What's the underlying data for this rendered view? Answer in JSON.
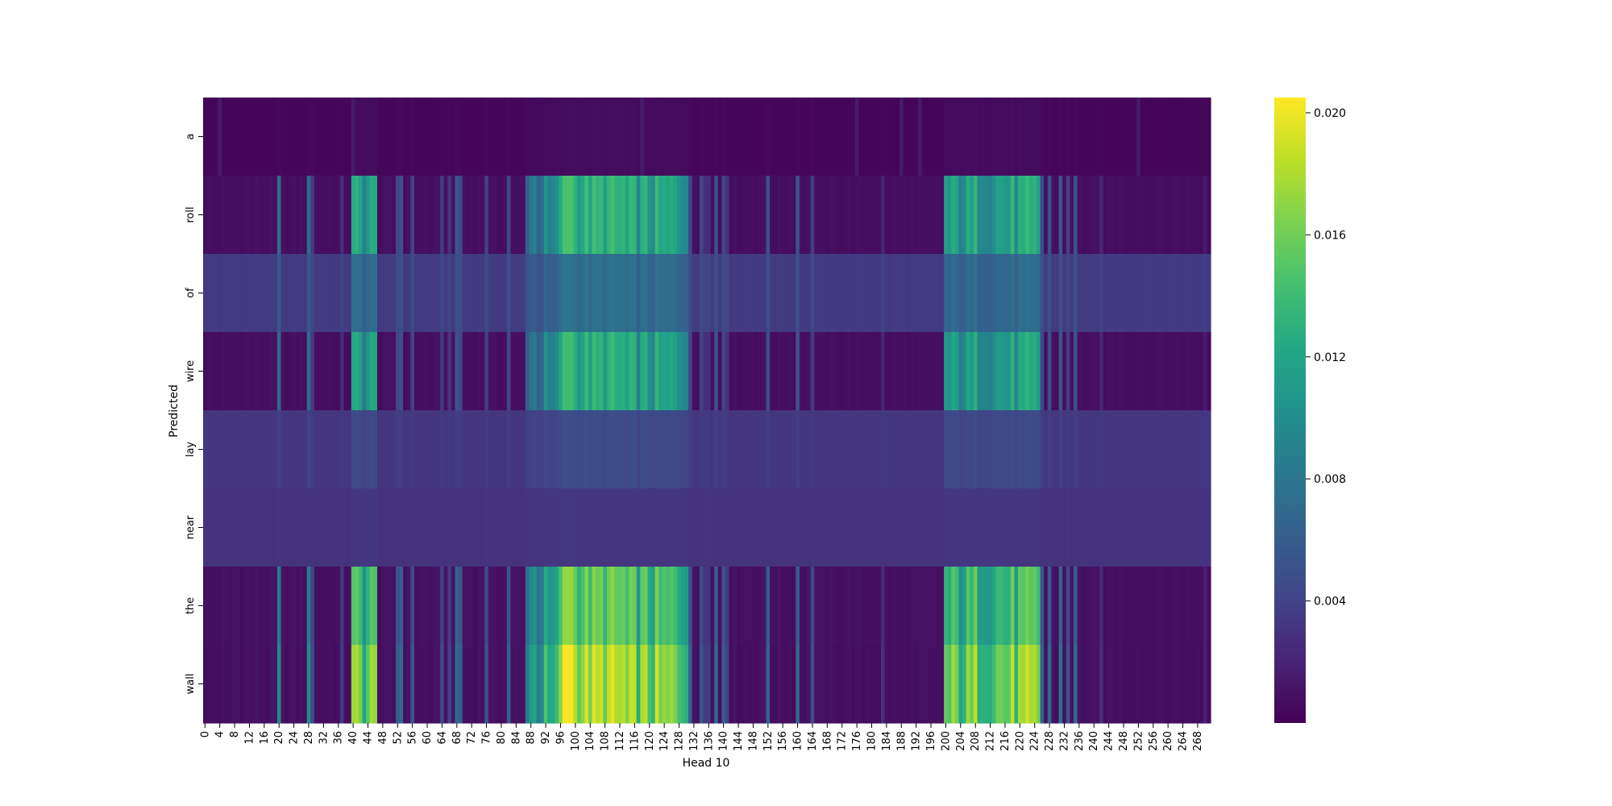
{
  "chart_data": {
    "type": "heatmap",
    "title": "",
    "xlabel": "Head 10",
    "ylabel": "Predicted",
    "y_categories": [
      "a",
      "roll",
      "of",
      "wire",
      "lay",
      "near",
      "the",
      "wall"
    ],
    "x_count": 272,
    "x_tick_labels": [
      "0",
      "4",
      "8",
      "12",
      "16",
      "20",
      "24",
      "28",
      "32",
      "36",
      "40",
      "44",
      "48",
      "52",
      "56",
      "60",
      "64",
      "68",
      "72",
      "76",
      "80",
      "84",
      "88",
      "92",
      "96",
      "100",
      "104",
      "108",
      "112",
      "116",
      "120",
      "124",
      "128",
      "132",
      "136",
      "140",
      "144",
      "148",
      "152",
      "156",
      "160",
      "164",
      "168",
      "172",
      "176",
      "180",
      "184",
      "188",
      "192",
      "196",
      "200",
      "204",
      "208",
      "212",
      "216",
      "220",
      "224",
      "228",
      "232",
      "236",
      "240",
      "244",
      "248",
      "252",
      "256",
      "260",
      "264",
      "268"
    ],
    "colormap": "viridis",
    "value_range": [
      0.0,
      0.0205
    ],
    "colorbar_ticks": [
      "0.004",
      "0.008",
      "0.012",
      "0.016",
      "0.020"
    ],
    "row_profiles": {
      "a": "near-uniform low attention (~0.0003) with faint stripes",
      "roll": "high bands around columns 40-46, 96-130, 202-225 (~0.012-0.015)",
      "of": "moderate diffuse attention (~0.005-0.008) in the same bands",
      "wire": "high bands similar to 'roll' (~0.012-0.014)",
      "lay": "low-moderate diffuse attention (~0.004-0.005)",
      "near": "nearly uniform low attention (~0.003)",
      "the": "high bands, peak ~0.017 near columns 97-99",
      "wall": "highest values, peak ~0.020 near columns 97-99"
    }
  }
}
